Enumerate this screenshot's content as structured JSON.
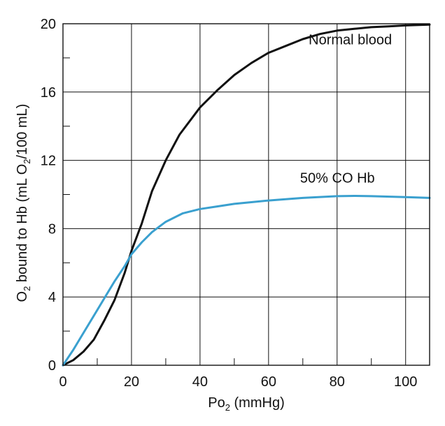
{
  "chart_data": {
    "type": "line",
    "title": "",
    "xlabel": {
      "prefix": "Po",
      "sub": "2",
      "suffix": " (mmHg)"
    },
    "ylabel": {
      "prefix": "O",
      "sub1": "2",
      "middle": " bound to Hb (mL O",
      "sub2": "2",
      "suffix": "/100 mL)"
    },
    "xlim": [
      0,
      107
    ],
    "ylim": [
      0,
      20
    ],
    "x_ticks": [
      0,
      20,
      40,
      60,
      80,
      100
    ],
    "y_ticks": [
      0,
      4,
      8,
      12,
      16,
      20
    ],
    "x_grid": [
      20,
      40,
      60,
      80,
      100
    ],
    "y_grid": [
      4,
      8,
      12,
      16
    ],
    "y_minor_ticks": [
      2,
      6,
      10,
      14,
      18
    ],
    "x_minor_ticks": [
      10,
      30,
      50,
      70,
      90
    ],
    "grid": true,
    "series": [
      {
        "name": "Normal blood",
        "color": "#111111",
        "points": [
          [
            0,
            0
          ],
          [
            3,
            0.3
          ],
          [
            6,
            0.8
          ],
          [
            9,
            1.5
          ],
          [
            12,
            2.6
          ],
          [
            15,
            3.8
          ],
          [
            18,
            5.4
          ],
          [
            20,
            6.7
          ],
          [
            23,
            8.3
          ],
          [
            26,
            10.2
          ],
          [
            30,
            12.0
          ],
          [
            34,
            13.5
          ],
          [
            40,
            15.1
          ],
          [
            45,
            16.1
          ],
          [
            50,
            17.0
          ],
          [
            55,
            17.7
          ],
          [
            60,
            18.3
          ],
          [
            65,
            18.7
          ],
          [
            70,
            19.1
          ],
          [
            75,
            19.4
          ],
          [
            80,
            19.6
          ],
          [
            85,
            19.7
          ],
          [
            90,
            19.8
          ],
          [
            95,
            19.85
          ],
          [
            100,
            19.9
          ],
          [
            107,
            19.95
          ]
        ]
      },
      {
        "name": "50% CO Hb",
        "color": "#3aa0cf",
        "points": [
          [
            0,
            0
          ],
          [
            3,
            0.9
          ],
          [
            6,
            1.9
          ],
          [
            9,
            2.9
          ],
          [
            12,
            3.9
          ],
          [
            15,
            4.9
          ],
          [
            18,
            5.8
          ],
          [
            20,
            6.5
          ],
          [
            23,
            7.2
          ],
          [
            26,
            7.8
          ],
          [
            30,
            8.4
          ],
          [
            35,
            8.9
          ],
          [
            40,
            9.15
          ],
          [
            45,
            9.3
          ],
          [
            50,
            9.45
          ],
          [
            55,
            9.55
          ],
          [
            60,
            9.65
          ],
          [
            70,
            9.8
          ],
          [
            80,
            9.9
          ],
          [
            85,
            9.92
          ],
          [
            90,
            9.9
          ],
          [
            100,
            9.85
          ],
          [
            107,
            9.8
          ]
        ]
      }
    ],
    "annotations": [
      {
        "text": "Normal blood",
        "x": 96,
        "y": 18.8
      },
      {
        "text": "50% CO Hb",
        "x": 91,
        "y": 10.7
      }
    ]
  }
}
